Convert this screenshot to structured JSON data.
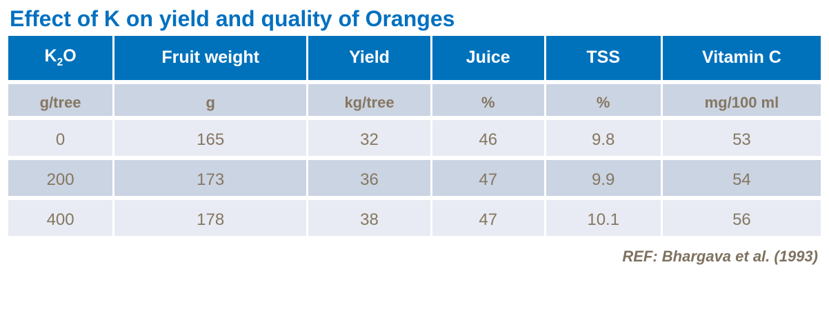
{
  "title": "Effect of K on yield and quality of Oranges",
  "reference": "REF: Bhargava  et al. (1993)",
  "colors": {
    "title_color": "#0070C0",
    "header_bg": "#0072BC",
    "header_text": "#FFFFFF",
    "band_dark": "#CBD4E3",
    "band_light": "#E8EBF3",
    "body_text": "#857761",
    "ref_color": "#7E7160",
    "page_bg": "#FFFFFF"
  },
  "table": {
    "header": {
      "k2o": {
        "base": "K",
        "sub": "2",
        "rest": "O"
      },
      "columns": [
        "Fruit weight",
        "Yield",
        "Juice",
        "TSS",
        "Vitamin C"
      ]
    },
    "units": [
      "g/tree",
      "g",
      "kg/tree",
      "%",
      "%",
      "mg/100 ml"
    ],
    "rows": [
      [
        "0",
        "165",
        "32",
        "46",
        "9.8",
        "53"
      ],
      [
        "200",
        "173",
        "36",
        "47",
        "9.9",
        "54"
      ],
      [
        "400",
        "178",
        "38",
        "47",
        "10.1",
        "56"
      ]
    ]
  },
  "chart_data": {
    "type": "table",
    "title": "Effect of K on yield and quality of Oranges",
    "columns": [
      "K2O (g/tree)",
      "Fruit weight (g)",
      "Yield (kg/tree)",
      "Juice (%)",
      "TSS (%)",
      "Vitamin C (mg/100 ml)"
    ],
    "rows": [
      [
        0,
        165,
        32,
        46,
        9.8,
        53
      ],
      [
        200,
        173,
        36,
        47,
        9.9,
        54
      ],
      [
        400,
        178,
        38,
        47,
        10.1,
        56
      ]
    ],
    "source": "REF: Bhargava et al. (1993)"
  }
}
